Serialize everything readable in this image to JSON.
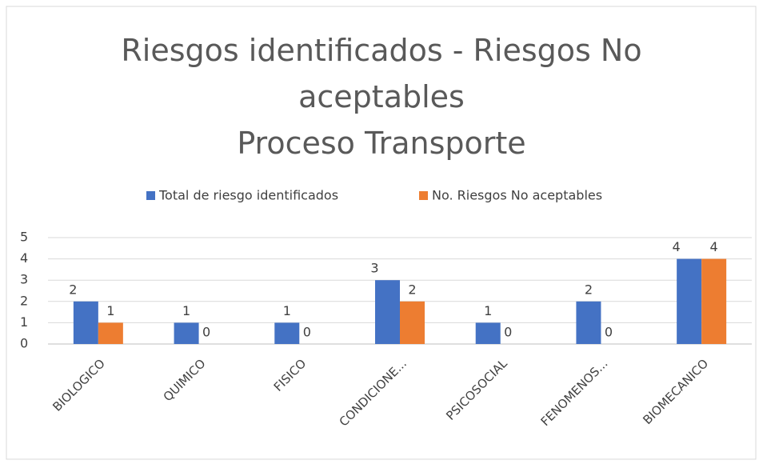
{
  "chart_data": {
    "type": "bar",
    "title": "Riesgos identificados - Riesgos No aceptables",
    "subtitle": "Proceso Transporte",
    "categories": [
      "BIOLOGICO",
      "QUIMICO",
      "FISICO",
      "CONDICIONE...",
      "PSICOSOCIAL",
      "FENOMENOS...",
      "BIOMECANICO"
    ],
    "series": [
      {
        "name": "Total de riesgo identificados",
        "color": "#4472c4",
        "values": [
          2,
          1,
          1,
          3,
          1,
          2,
          4
        ]
      },
      {
        "name": "No. Riesgos No aceptables",
        "color": "#ed7d31",
        "values": [
          1,
          0,
          0,
          2,
          0,
          0,
          4
        ]
      }
    ],
    "ylim": [
      0,
      5
    ],
    "yticks": [
      0,
      1,
      2,
      3,
      4,
      5
    ],
    "grid": true,
    "legend": "top"
  }
}
